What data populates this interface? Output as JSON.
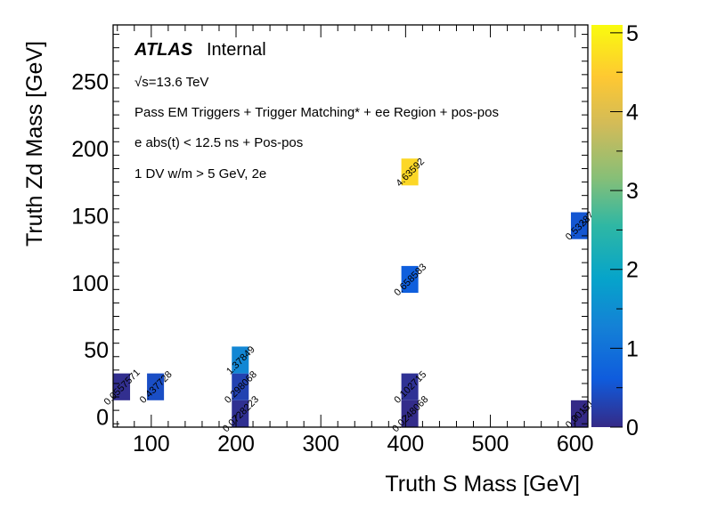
{
  "chart_data": {
    "type": "heatmap",
    "title": "",
    "xlabel": "Truth S Mass [GeV]",
    "ylabel": "Truth Zd Mass [GeV]",
    "xlim": [
      55,
      615
    ],
    "ylim": [
      -7.5,
      292
    ],
    "zlim": [
      0,
      5.1
    ],
    "x_ticks": [
      100,
      200,
      300,
      400,
      500,
      600
    ],
    "y_ticks": [
      0,
      50,
      100,
      150,
      200,
      250
    ],
    "z_ticks": [
      0,
      1,
      2,
      3,
      4,
      5
    ],
    "colormap": "viridis-like (ROOT kBird)",
    "cells": [
      {
        "x": [
          55,
          75
        ],
        "y": [
          12.5,
          32.5
        ],
        "value": 0.0557571,
        "label": "0.0557571"
      },
      {
        "x": [
          95,
          115
        ],
        "y": [
          12.5,
          32.5
        ],
        "value": 0.437728,
        "label": "0.437728"
      },
      {
        "x": [
          195,
          215
        ],
        "y": [
          -7.5,
          12.5
        ],
        "value": 0.0728223,
        "label": "0.0728223"
      },
      {
        "x": [
          195,
          215
        ],
        "y": [
          12.5,
          32.5
        ],
        "value": 0.298068,
        "label": "0.298068"
      },
      {
        "x": [
          195,
          215
        ],
        "y": [
          32.5,
          52.5
        ],
        "value": 1.37849,
        "label": "1.37849"
      },
      {
        "x": [
          395,
          415
        ],
        "y": [
          -7.5,
          12.5
        ],
        "value": 0.0248068,
        "label": "0.0248068"
      },
      {
        "x": [
          395,
          415
        ],
        "y": [
          12.5,
          32.5
        ],
        "value": 0.102715,
        "label": "0.102715"
      },
      {
        "x": [
          395,
          415
        ],
        "y": [
          92.5,
          112.5
        ],
        "value": 0.658583,
        "label": "0.658583"
      },
      {
        "x": [
          395,
          415
        ],
        "y": [
          172.5,
          192.5
        ],
        "value": 4.63592,
        "label": "4.63592"
      },
      {
        "x": [
          595,
          615
        ],
        "y": [
          132.5,
          152.5
        ],
        "value": 0.53287,
        "label": "0.53287"
      },
      {
        "x": [
          595,
          615
        ],
        "y": [
          -7.5,
          12.5
        ],
        "value": 0.00151,
        "label": "0.00151"
      }
    ],
    "annotations": {
      "experiment": "ATLAS",
      "status": "Internal",
      "energy": "√s=13.6 TeV",
      "lines": [
        "Pass EM Triggers + Trigger Matching* + ee Region + pos-pos",
        "e abs(t) < 12.5 ns + Pos-pos",
        "1 DV w/m > 5 GeV, 2e"
      ]
    },
    "grid": false,
    "legend": "none (colorbar right)"
  }
}
